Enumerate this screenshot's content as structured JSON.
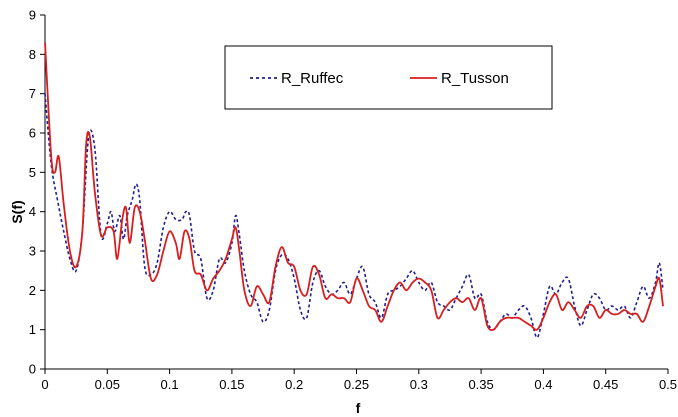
{
  "chart_data": {
    "type": "line",
    "title": "",
    "xlabel": "f",
    "ylabel": "S(f)",
    "xlim": [
      0,
      0.5
    ],
    "ylim": [
      0,
      9
    ],
    "xticks": [
      0,
      0.05,
      0.1,
      0.15,
      0.2,
      0.25,
      0.3,
      0.35,
      0.4,
      0.45,
      0.5
    ],
    "xtick_labels": [
      "0",
      "0.05",
      "0.1",
      "0.15",
      "0.2",
      "0.25",
      "0.3",
      "0.35",
      "0.4",
      "0.45",
      "0.5"
    ],
    "yticks": [
      0,
      1,
      2,
      3,
      4,
      5,
      6,
      7,
      8,
      9
    ],
    "ytick_labels": [
      "0",
      "1",
      "2",
      "3",
      "4",
      "5",
      "6",
      "7",
      "8",
      "9"
    ],
    "grid": false,
    "legend": "inside-top",
    "series": [
      {
        "name": "R_Ruffec",
        "color": "#1f1f8f",
        "style": "dashed",
        "points": [
          [
            0,
            7.0
          ],
          [
            0.005,
            5.2
          ],
          [
            0.01,
            4.3
          ],
          [
            0.015,
            3.5
          ],
          [
            0.02,
            2.8
          ],
          [
            0.025,
            2.5
          ],
          [
            0.03,
            3.5
          ],
          [
            0.035,
            5.9
          ],
          [
            0.04,
            5.6
          ],
          [
            0.045,
            3.4
          ],
          [
            0.05,
            3.7
          ],
          [
            0.053,
            4.0
          ],
          [
            0.056,
            3.5
          ],
          [
            0.06,
            3.9
          ],
          [
            0.063,
            3.3
          ],
          [
            0.066,
            3.9
          ],
          [
            0.07,
            4.3
          ],
          [
            0.073,
            4.7
          ],
          [
            0.076,
            4.3
          ],
          [
            0.08,
            2.6
          ],
          [
            0.085,
            2.4
          ],
          [
            0.09,
            2.7
          ],
          [
            0.095,
            3.6
          ],
          [
            0.1,
            4.0
          ],
          [
            0.105,
            3.8
          ],
          [
            0.11,
            3.8
          ],
          [
            0.113,
            4.0
          ],
          [
            0.116,
            3.9
          ],
          [
            0.12,
            3.0
          ],
          [
            0.125,
            2.8
          ],
          [
            0.13,
            1.8
          ],
          [
            0.135,
            2.0
          ],
          [
            0.14,
            2.8
          ],
          [
            0.145,
            2.7
          ],
          [
            0.15,
            3.2
          ],
          [
            0.153,
            3.9
          ],
          [
            0.156,
            3.4
          ],
          [
            0.16,
            2.5
          ],
          [
            0.165,
            1.9
          ],
          [
            0.17,
            1.7
          ],
          [
            0.175,
            1.2
          ],
          [
            0.18,
            1.5
          ],
          [
            0.185,
            2.5
          ],
          [
            0.19,
            2.9
          ],
          [
            0.195,
            2.8
          ],
          [
            0.2,
            2.3
          ],
          [
            0.205,
            1.5
          ],
          [
            0.21,
            1.3
          ],
          [
            0.215,
            2.2
          ],
          [
            0.22,
            2.5
          ],
          [
            0.225,
            2.1
          ],
          [
            0.23,
            1.9
          ],
          [
            0.235,
            2.0
          ],
          [
            0.24,
            2.2
          ],
          [
            0.245,
            1.9
          ],
          [
            0.25,
            2.3
          ],
          [
            0.255,
            2.6
          ],
          [
            0.26,
            1.9
          ],
          [
            0.265,
            1.7
          ],
          [
            0.27,
            1.3
          ],
          [
            0.275,
            1.9
          ],
          [
            0.28,
            2.0
          ],
          [
            0.285,
            2.1
          ],
          [
            0.29,
            2.3
          ],
          [
            0.295,
            2.5
          ],
          [
            0.3,
            2.2
          ],
          [
            0.305,
            2.0
          ],
          [
            0.31,
            2.2
          ],
          [
            0.315,
            1.7
          ],
          [
            0.32,
            1.6
          ],
          [
            0.325,
            1.5
          ],
          [
            0.33,
            1.8
          ],
          [
            0.335,
            2.1
          ],
          [
            0.34,
            2.4
          ],
          [
            0.345,
            1.8
          ],
          [
            0.35,
            1.9
          ],
          [
            0.355,
            1.2
          ],
          [
            0.36,
            1.0
          ],
          [
            0.365,
            1.2
          ],
          [
            0.37,
            1.4
          ],
          [
            0.375,
            1.3
          ],
          [
            0.38,
            1.5
          ],
          [
            0.385,
            1.6
          ],
          [
            0.39,
            1.3
          ],
          [
            0.395,
            0.8
          ],
          [
            0.4,
            1.4
          ],
          [
            0.405,
            2.1
          ],
          [
            0.41,
            1.9
          ],
          [
            0.415,
            2.2
          ],
          [
            0.42,
            2.3
          ],
          [
            0.425,
            1.6
          ],
          [
            0.43,
            1.1
          ],
          [
            0.435,
            1.5
          ],
          [
            0.44,
            1.9
          ],
          [
            0.445,
            1.8
          ],
          [
            0.45,
            1.5
          ],
          [
            0.455,
            1.6
          ],
          [
            0.46,
            1.5
          ],
          [
            0.465,
            1.6
          ],
          [
            0.47,
            1.3
          ],
          [
            0.475,
            1.7
          ],
          [
            0.48,
            2.1
          ],
          [
            0.485,
            1.8
          ],
          [
            0.49,
            2.2
          ],
          [
            0.493,
            2.7
          ],
          [
            0.496,
            2.0
          ]
        ]
      },
      {
        "name": "R_Tusson",
        "color": "#d81e1e",
        "style": "solid",
        "points": [
          [
            0,
            8.3
          ],
          [
            0.005,
            5.4
          ],
          [
            0.008,
            5.0
          ],
          [
            0.011,
            5.4
          ],
          [
            0.015,
            4.2
          ],
          [
            0.02,
            3.0
          ],
          [
            0.025,
            2.6
          ],
          [
            0.03,
            3.5
          ],
          [
            0.033,
            5.7
          ],
          [
            0.036,
            5.9
          ],
          [
            0.04,
            4.5
          ],
          [
            0.045,
            3.4
          ],
          [
            0.05,
            3.6
          ],
          [
            0.055,
            3.5
          ],
          [
            0.058,
            2.8
          ],
          [
            0.062,
            3.8
          ],
          [
            0.065,
            4.1
          ],
          [
            0.068,
            3.2
          ],
          [
            0.072,
            4.1
          ],
          [
            0.076,
            4.0
          ],
          [
            0.08,
            3.3
          ],
          [
            0.085,
            2.3
          ],
          [
            0.09,
            2.4
          ],
          [
            0.095,
            3.0
          ],
          [
            0.1,
            3.5
          ],
          [
            0.105,
            3.2
          ],
          [
            0.108,
            2.8
          ],
          [
            0.112,
            3.5
          ],
          [
            0.116,
            3.3
          ],
          [
            0.12,
            2.5
          ],
          [
            0.125,
            2.4
          ],
          [
            0.13,
            2.0
          ],
          [
            0.135,
            2.3
          ],
          [
            0.14,
            2.5
          ],
          [
            0.145,
            2.8
          ],
          [
            0.15,
            3.3
          ],
          [
            0.153,
            3.6
          ],
          [
            0.156,
            3.0
          ],
          [
            0.16,
            2.0
          ],
          [
            0.165,
            1.6
          ],
          [
            0.17,
            2.1
          ],
          [
            0.175,
            1.9
          ],
          [
            0.18,
            1.7
          ],
          [
            0.185,
            2.6
          ],
          [
            0.19,
            3.1
          ],
          [
            0.195,
            2.7
          ],
          [
            0.2,
            2.6
          ],
          [
            0.205,
            2.0
          ],
          [
            0.21,
            1.9
          ],
          [
            0.215,
            2.6
          ],
          [
            0.22,
            2.4
          ],
          [
            0.225,
            1.8
          ],
          [
            0.23,
            1.9
          ],
          [
            0.235,
            1.8
          ],
          [
            0.24,
            1.8
          ],
          [
            0.245,
            1.7
          ],
          [
            0.25,
            2.3
          ],
          [
            0.255,
            2.0
          ],
          [
            0.26,
            1.6
          ],
          [
            0.265,
            1.5
          ],
          [
            0.27,
            1.2
          ],
          [
            0.275,
            1.6
          ],
          [
            0.28,
            2.0
          ],
          [
            0.285,
            2.2
          ],
          [
            0.29,
            2.0
          ],
          [
            0.295,
            2.2
          ],
          [
            0.3,
            2.3
          ],
          [
            0.305,
            2.2
          ],
          [
            0.31,
            2.0
          ],
          [
            0.315,
            1.3
          ],
          [
            0.32,
            1.5
          ],
          [
            0.325,
            1.7
          ],
          [
            0.33,
            1.8
          ],
          [
            0.335,
            1.7
          ],
          [
            0.34,
            1.8
          ],
          [
            0.345,
            1.5
          ],
          [
            0.35,
            1.8
          ],
          [
            0.355,
            1.1
          ],
          [
            0.36,
            1.0
          ],
          [
            0.365,
            1.2
          ],
          [
            0.37,
            1.3
          ],
          [
            0.375,
            1.3
          ],
          [
            0.38,
            1.3
          ],
          [
            0.385,
            1.2
          ],
          [
            0.39,
            1.1
          ],
          [
            0.395,
            1.0
          ],
          [
            0.4,
            1.3
          ],
          [
            0.405,
            1.7
          ],
          [
            0.41,
            1.9
          ],
          [
            0.415,
            1.5
          ],
          [
            0.42,
            1.7
          ],
          [
            0.425,
            1.5
          ],
          [
            0.43,
            1.3
          ],
          [
            0.435,
            1.6
          ],
          [
            0.44,
            1.6
          ],
          [
            0.445,
            1.3
          ],
          [
            0.45,
            1.5
          ],
          [
            0.455,
            1.4
          ],
          [
            0.46,
            1.4
          ],
          [
            0.465,
            1.5
          ],
          [
            0.47,
            1.4
          ],
          [
            0.475,
            1.4
          ],
          [
            0.48,
            1.2
          ],
          [
            0.485,
            1.6
          ],
          [
            0.49,
            2.1
          ],
          [
            0.493,
            2.3
          ],
          [
            0.496,
            1.6
          ]
        ]
      }
    ]
  }
}
